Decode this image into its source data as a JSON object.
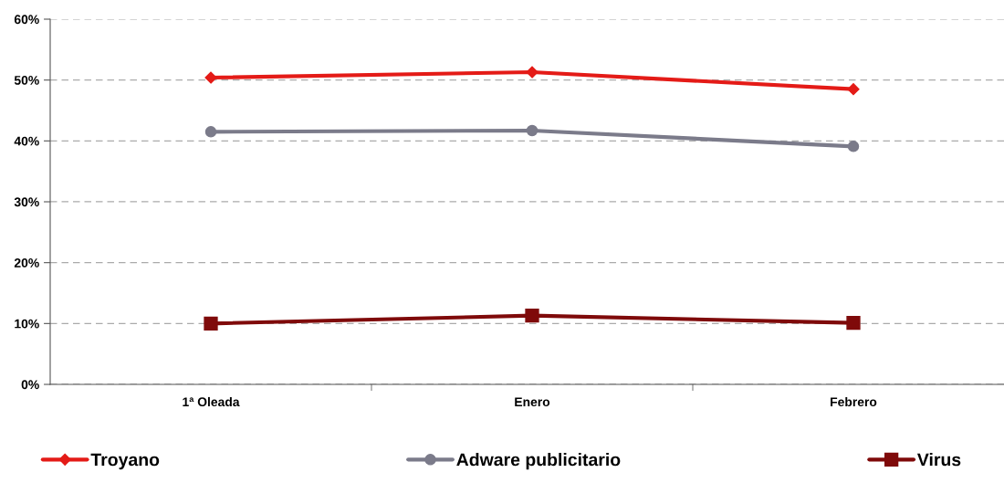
{
  "chart_data": {
    "type": "line",
    "categories": [
      "1ª Oleada",
      "Enero",
      "Febrero"
    ],
    "series": [
      {
        "name": "Troyano",
        "color": "#e41b17",
        "marker": "diamond",
        "values": [
          50.4,
          51.3,
          48.5
        ]
      },
      {
        "name": "Adware publicitario",
        "color": "#7b7b8a",
        "marker": "circle",
        "values": [
          41.5,
          41.7,
          39.1
        ]
      },
      {
        "name": "Virus",
        "color": "#7f0a0a",
        "marker": "square",
        "values": [
          10.0,
          11.3,
          10.1
        ]
      }
    ],
    "ylim": [
      0,
      60
    ],
    "yticks": [
      {
        "value": 0,
        "label": "0%"
      },
      {
        "value": 10,
        "label": "10%"
      },
      {
        "value": 20,
        "label": "20%"
      },
      {
        "value": 30,
        "label": "30%"
      },
      {
        "value": 40,
        "label": "40%"
      },
      {
        "value": 50,
        "label": "50%"
      },
      {
        "value": 60,
        "label": "60%"
      }
    ],
    "grid": "y",
    "legend": "bottom",
    "line_style": "solid"
  }
}
